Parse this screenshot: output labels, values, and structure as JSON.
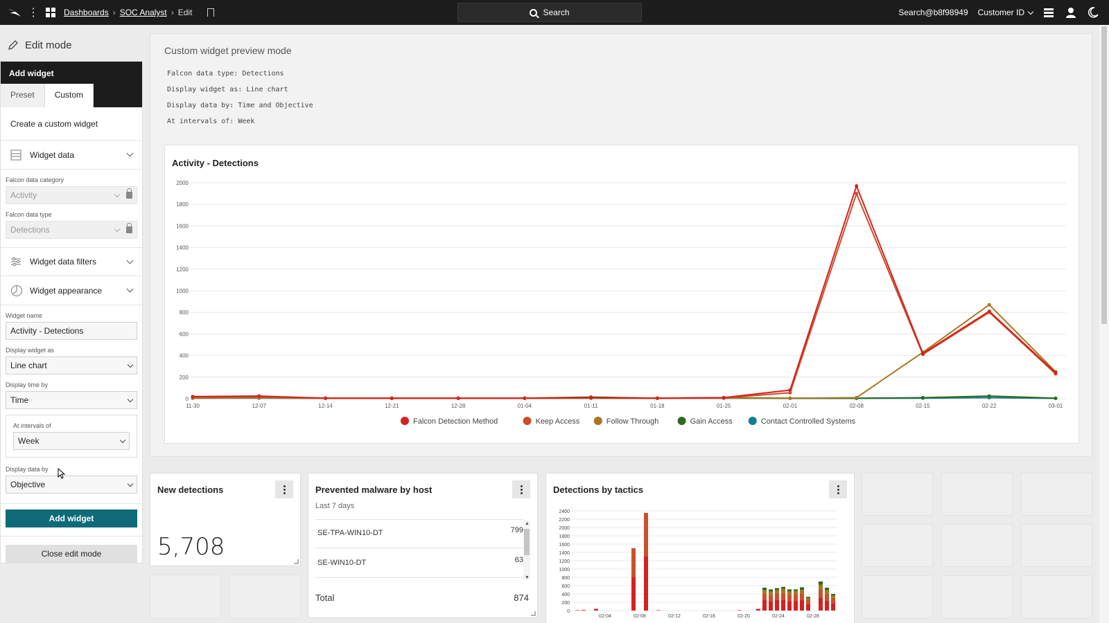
{
  "topbar": {
    "breadcrumbs": [
      "Dashboards",
      "SOC Analyst",
      "Edit"
    ],
    "search_label": "Search",
    "user": "Search@b8f98949",
    "customer_label": "Customer ID"
  },
  "sidebar": {
    "edit_mode_label": "Edit mode",
    "header": "Add widget",
    "tabs": [
      "Preset",
      "Custom"
    ],
    "active_tab": "Custom",
    "create_label": "Create a custom widget",
    "sections": {
      "widget_data": "Widget data",
      "widget_data_filters": "Widget data filters",
      "widget_appearance": "Widget appearance"
    },
    "fields": {
      "data_category_label": "Falcon data category",
      "data_category_value": "Activity",
      "data_type_label": "Falcon data type",
      "data_type_value": "Detections",
      "widget_name_label": "Widget name",
      "widget_name_value": "Activity - Detections",
      "display_as_label": "Display widget as",
      "display_as_value": "Line chart",
      "display_time_label": "Display time by",
      "display_time_value": "Time",
      "interval_label": "At intervals of",
      "interval_value": "Week",
      "display_data_label": "Display data by",
      "display_data_value": "Objective"
    },
    "add_button": "Add widget",
    "close_button": "Close edit mode"
  },
  "preview": {
    "title": "Custom widget preview mode",
    "meta": [
      "Falcon data type: Detections",
      "Display widget as: Line chart",
      "Display data by: Time and Objective",
      "At intervals of: Week"
    ]
  },
  "widgets": {
    "new_detections": {
      "title": "New detections",
      "value": "5,708"
    },
    "prevented_malware": {
      "title": "Prevented malware by host",
      "subtitle": "Last 7 days",
      "rows": [
        {
          "host": "SE-TPA-WIN10-DT",
          "count": "799"
        },
        {
          "host": "SE-WIN10-DT",
          "count": "63"
        }
      ],
      "total_label": "Total",
      "total_value": "874"
    },
    "detections_by_tactics": {
      "title": "Detections by tactics"
    }
  },
  "chart_data": [
    {
      "type": "line",
      "title": "Activity - Detections",
      "x": [
        "11-30",
        "12-07",
        "12-14",
        "12-21",
        "12-28",
        "01-04",
        "01-11",
        "01-18",
        "01-25",
        "02-01",
        "02-08",
        "02-15",
        "02-22",
        "03-01"
      ],
      "ylim": [
        0,
        2000
      ],
      "yticks": [
        0,
        200,
        400,
        600,
        800,
        1000,
        1200,
        1400,
        1600,
        1800,
        2000
      ],
      "legend_position": "bottom",
      "series": [
        {
          "name": "Falcon Detection Method",
          "color": "#d62020",
          "values": [
            20,
            25,
            5,
            5,
            5,
            5,
            10,
            5,
            10,
            80,
            1970,
            420,
            810,
            240
          ]
        },
        {
          "name": "Keep Access",
          "color": "#c9502a",
          "values": [
            15,
            20,
            5,
            5,
            5,
            5,
            8,
            5,
            8,
            55,
            1900,
            410,
            800,
            230
          ]
        },
        {
          "name": "Follow Through",
          "color": "#a8761e",
          "values": [
            5,
            8,
            3,
            3,
            3,
            3,
            5,
            3,
            5,
            5,
            10,
            430,
            870,
            250
          ]
        },
        {
          "name": "Gain Access",
          "color": "#2e6a1f",
          "values": [
            10,
            15,
            5,
            5,
            5,
            5,
            15,
            5,
            10,
            5,
            5,
            10,
            25,
            5
          ]
        },
        {
          "name": "Contact Controlled Systems",
          "color": "#137d93",
          "values": [
            5,
            5,
            3,
            3,
            3,
            3,
            5,
            3,
            5,
            3,
            3,
            5,
            10,
            3
          ]
        }
      ]
    },
    {
      "type": "bar",
      "title": "",
      "x_ticks": [
        "02-04",
        "02-08",
        "02-12",
        "02-16",
        "02-20",
        "02-24",
        "02-28"
      ],
      "yticks": [
        0,
        200,
        400,
        600,
        800,
        1000,
        1200,
        1400,
        1600,
        1800,
        2000,
        2200,
        2400
      ],
      "ylim": [
        0,
        2400
      ],
      "colors": [
        "#d62020",
        "#c9502a",
        "#a8761e",
        "#2e6a1f"
      ],
      "bars": [
        [
          10,
          0,
          0,
          0
        ],
        [
          15,
          0,
          0,
          0
        ],
        [
          0,
          0,
          0,
          0
        ],
        [
          40,
          0,
          0,
          0
        ],
        [
          0,
          0,
          0,
          0
        ],
        [
          0,
          0,
          0,
          0
        ],
        [
          0,
          0,
          0,
          0
        ],
        [
          0,
          0,
          0,
          0
        ],
        [
          0,
          0,
          0,
          0
        ],
        [
          800,
          700,
          0,
          0
        ],
        [
          0,
          0,
          0,
          0
        ],
        [
          1300,
          1050,
          0,
          0
        ],
        [
          0,
          0,
          0,
          0
        ],
        [
          10,
          0,
          0,
          0
        ],
        [
          0,
          0,
          0,
          0
        ],
        [
          0,
          0,
          0,
          0
        ],
        [
          0,
          0,
          0,
          0
        ],
        [
          0,
          0,
          0,
          0
        ],
        [
          0,
          0,
          0,
          0
        ],
        [
          0,
          0,
          0,
          0
        ],
        [
          0,
          0,
          0,
          0
        ],
        [
          0,
          0,
          0,
          0
        ],
        [
          0,
          0,
          0,
          0
        ],
        [
          0,
          0,
          0,
          0
        ],
        [
          0,
          0,
          0,
          0
        ],
        [
          0,
          0,
          0,
          0
        ],
        [
          10,
          0,
          0,
          0
        ],
        [
          0,
          0,
          0,
          0
        ],
        [
          0,
          0,
          0,
          0
        ],
        [
          40,
          0,
          0,
          0
        ],
        [
          250,
          160,
          80,
          60
        ],
        [
          230,
          150,
          80,
          50
        ],
        [
          250,
          160,
          80,
          50
        ],
        [
          260,
          170,
          90,
          50
        ],
        [
          230,
          150,
          80,
          50
        ],
        [
          240,
          150,
          80,
          40
        ],
        [
          250,
          160,
          90,
          60
        ],
        [
          150,
          100,
          50,
          30
        ],
        [
          0,
          0,
          0,
          0
        ],
        [
          300,
          200,
          120,
          80
        ],
        [
          240,
          160,
          90,
          60
        ],
        [
          180,
          120,
          60,
          40
        ]
      ]
    }
  ]
}
